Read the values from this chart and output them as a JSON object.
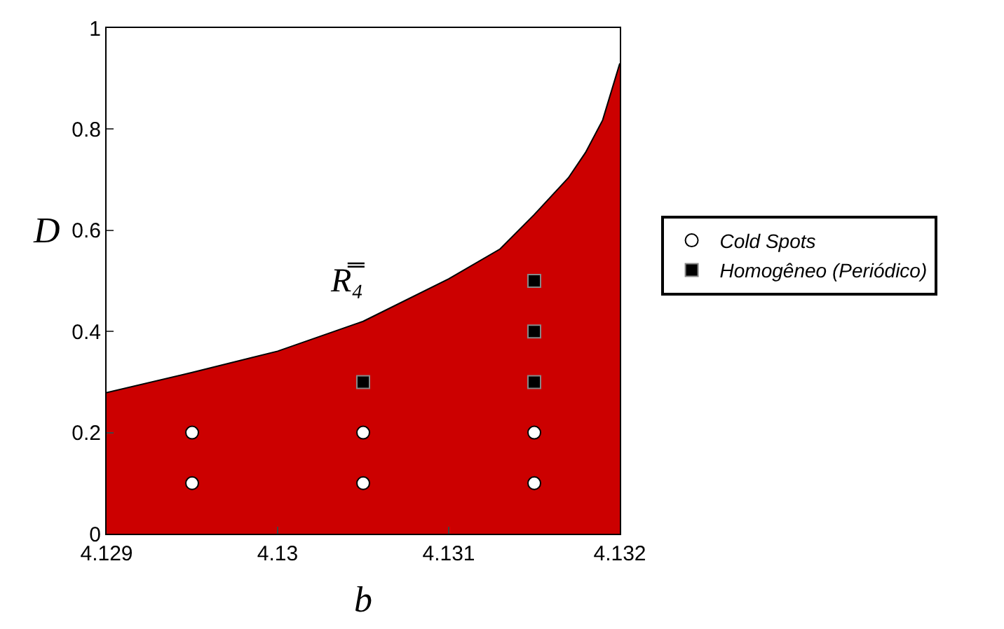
{
  "chart_data": {
    "type": "area",
    "xlabel": "b",
    "ylabel": "D",
    "xlim": [
      4.129,
      4.132
    ],
    "xticks": [
      4.129,
      4.13,
      4.131,
      4.132
    ],
    "ylim": [
      0,
      1
    ],
    "yticks": [
      0,
      0.2,
      0.4,
      0.6,
      0.8,
      1
    ],
    "legend": "right",
    "series": [
      {
        "color": "#cc0000",
        "x": [
          4.129,
          4.1295,
          4.13,
          4.1305,
          4.131,
          4.1313,
          4.1315,
          4.1317,
          4.1318,
          4.1319,
          4.132
        ],
        "values": [
          0.279,
          0.319,
          0.361,
          0.42,
          0.504,
          0.563,
          0.631,
          0.704,
          0.754,
          0.818,
          0.93
        ]
      },
      {
        "type": "scatter",
        "name": "Cold Spots",
        "color": "#ffffff",
        "marker": "circle",
        "x": [
          4.1295,
          4.1295,
          4.1305,
          4.1305,
          4.1315,
          4.1315
        ],
        "values": [
          0.1,
          0.2,
          0.1,
          0.2,
          0.1,
          0.2
        ]
      },
      {
        "type": "scatter",
        "name": "Homogêneo (Periódico)",
        "color": "#000000",
        "marker": "square",
        "x": [
          4.1305,
          4.1315,
          4.1315,
          4.1315
        ],
        "values": [
          0.3,
          0.3,
          0.4,
          0.5
        ]
      }
    ],
    "annotations": [
      "R̿₄"
    ]
  }
}
